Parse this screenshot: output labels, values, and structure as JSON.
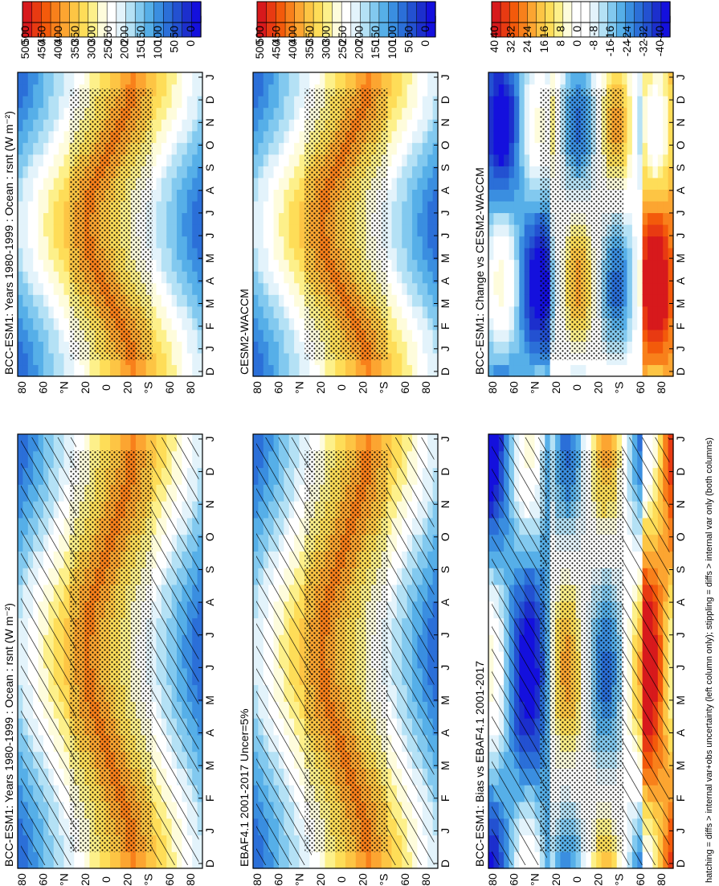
{
  "footer_note": "hatching = diffs > internal var+obs uncertainty (left column only); stippling = diffs > internal var only (both columns)",
  "palette": {
    "absolute": [
      "#d7191c",
      "#e83a12",
      "#f35a0b",
      "#f8801b",
      "#fca531",
      "#fdc544",
      "#fedd58",
      "#fdf08a",
      "#fefcdc",
      "#ffffff",
      "#e3f3fb",
      "#b4e1f5",
      "#82c9ef",
      "#56afe8",
      "#3a8ee0",
      "#2b6fd8",
      "#2351d1",
      "#1c2fcd",
      "#1410dd"
    ],
    "difference": [
      "#d7191c",
      "#e83a12",
      "#f35a0b",
      "#f8801b",
      "#fca531",
      "#fdc544",
      "#fedd58",
      "#fdf08a",
      "#fefcdc",
      "#ffffff",
      "#ffffff",
      "#e3f3fb",
      "#b4e1f5",
      "#82c9ef",
      "#56afe8",
      "#3a8ee0",
      "#2b6fd8",
      "#2351d1",
      "#1c2fcd",
      "#1410dd"
    ]
  },
  "chart_data": [
    {
      "type": "heatmap",
      "id": "p1",
      "title": "BCC-ESM1: Years 1980-1999 : Ocean : rsnt (W m⁻²)",
      "x_axis": "month",
      "y_axis": "latitude",
      "x_ticks": [
        "D",
        "J",
        "F",
        "M",
        "A",
        "M",
        "J",
        "J",
        "A",
        "S",
        "O",
        "N",
        "D",
        "J"
      ],
      "y_ticks": [
        "80",
        "60",
        "°N",
        "20",
        "0",
        "20",
        "°S",
        "60",
        "80"
      ],
      "y_range": [
        90,
        -90
      ],
      "colorbar": "absolute",
      "colorbar_labels": [
        "500",
        "450",
        "400",
        "350",
        "300",
        "250",
        "200",
        "150",
        "100",
        "50",
        "0"
      ],
      "overlay": [
        "hatching",
        "stippling"
      ]
    },
    {
      "type": "heatmap",
      "id": "p2",
      "title": "BCC-ESM1: Years 1980-1999 : Ocean : rsnt (W m⁻²)",
      "x_axis": "month",
      "y_axis": "latitude",
      "x_ticks": [
        "D",
        "J",
        "F",
        "M",
        "A",
        "M",
        "J",
        "J",
        "A",
        "S",
        "O",
        "N",
        "D",
        "J"
      ],
      "y_ticks": [
        "80",
        "60",
        "°N",
        "20",
        "0",
        "20",
        "°S",
        "60",
        "80"
      ],
      "y_range": [
        90,
        -90
      ],
      "colorbar": "absolute",
      "colorbar_labels": [
        "500",
        "450",
        "400",
        "350",
        "300",
        "250",
        "200",
        "150",
        "100",
        "50",
        "0"
      ],
      "overlay": [
        "stippling"
      ]
    },
    {
      "type": "heatmap",
      "id": "p3",
      "title": "EBAF4.1 2001-2017 Uncer=5%",
      "x_axis": "month",
      "y_axis": "latitude",
      "x_ticks": [
        "D",
        "J",
        "F",
        "M",
        "A",
        "M",
        "J",
        "J",
        "A",
        "S",
        "O",
        "N",
        "D",
        "J"
      ],
      "y_ticks": [
        "80",
        "60",
        "°N",
        "20",
        "0",
        "20",
        "°S",
        "60",
        "80"
      ],
      "y_range": [
        90,
        -90
      ],
      "colorbar": "absolute",
      "colorbar_labels": [
        "500",
        "450",
        "400",
        "350",
        "300",
        "250",
        "200",
        "150",
        "100",
        "50",
        "0"
      ],
      "overlay": [
        "hatching",
        "stippling"
      ]
    },
    {
      "type": "heatmap",
      "id": "p4",
      "title": "CESM2-WACCM",
      "x_axis": "month",
      "y_axis": "latitude",
      "x_ticks": [
        "D",
        "J",
        "F",
        "M",
        "A",
        "M",
        "J",
        "J",
        "A",
        "S",
        "O",
        "N",
        "D",
        "J"
      ],
      "y_ticks": [
        "80",
        "60",
        "°N",
        "20",
        "0",
        "20",
        "°S",
        "60",
        "80"
      ],
      "y_range": [
        90,
        -90
      ],
      "colorbar": "absolute",
      "colorbar_labels": [
        "500",
        "450",
        "400",
        "350",
        "300",
        "250",
        "200",
        "150",
        "100",
        "50",
        "0"
      ],
      "overlay": [
        "stippling"
      ]
    },
    {
      "type": "heatmap",
      "id": "p5",
      "title": "BCC-ESM1: Bias vs EBAF4.1 2001-2017",
      "x_axis": "month",
      "y_axis": "latitude",
      "x_ticks": [
        "D",
        "J",
        "F",
        "M",
        "A",
        "M",
        "J",
        "J",
        "A",
        "S",
        "O",
        "N",
        "D",
        "J"
      ],
      "y_ticks": [
        "80",
        "60",
        "°N",
        "20",
        "0",
        "20",
        "°S",
        "60",
        "80"
      ],
      "y_range": [
        90,
        -90
      ],
      "colorbar": "difference",
      "colorbar_labels": [
        "40",
        "32",
        "24",
        "16",
        "8",
        "0",
        "-8",
        "-16",
        "-24",
        "-32",
        "-40"
      ],
      "overlay": [
        "hatching",
        "stippling"
      ]
    },
    {
      "type": "heatmap",
      "id": "p6",
      "title": "BCC-ESM1: Change vs CESM2-WACCM",
      "x_axis": "month",
      "y_axis": "latitude",
      "x_ticks": [
        "D",
        "J",
        "F",
        "M",
        "A",
        "M",
        "J",
        "J",
        "A",
        "S",
        "O",
        "N",
        "D",
        "J"
      ],
      "y_ticks": [
        "80",
        "60",
        "°N",
        "20",
        "0",
        "20",
        "°S",
        "60",
        "80"
      ],
      "y_range": [
        90,
        -90
      ],
      "colorbar": "difference",
      "colorbar_labels": [
        "40",
        "32",
        "24",
        "16",
        "8",
        "0",
        "-8",
        "-16",
        "-24",
        "-32",
        "-40"
      ],
      "overlay": [
        "stippling"
      ]
    }
  ]
}
